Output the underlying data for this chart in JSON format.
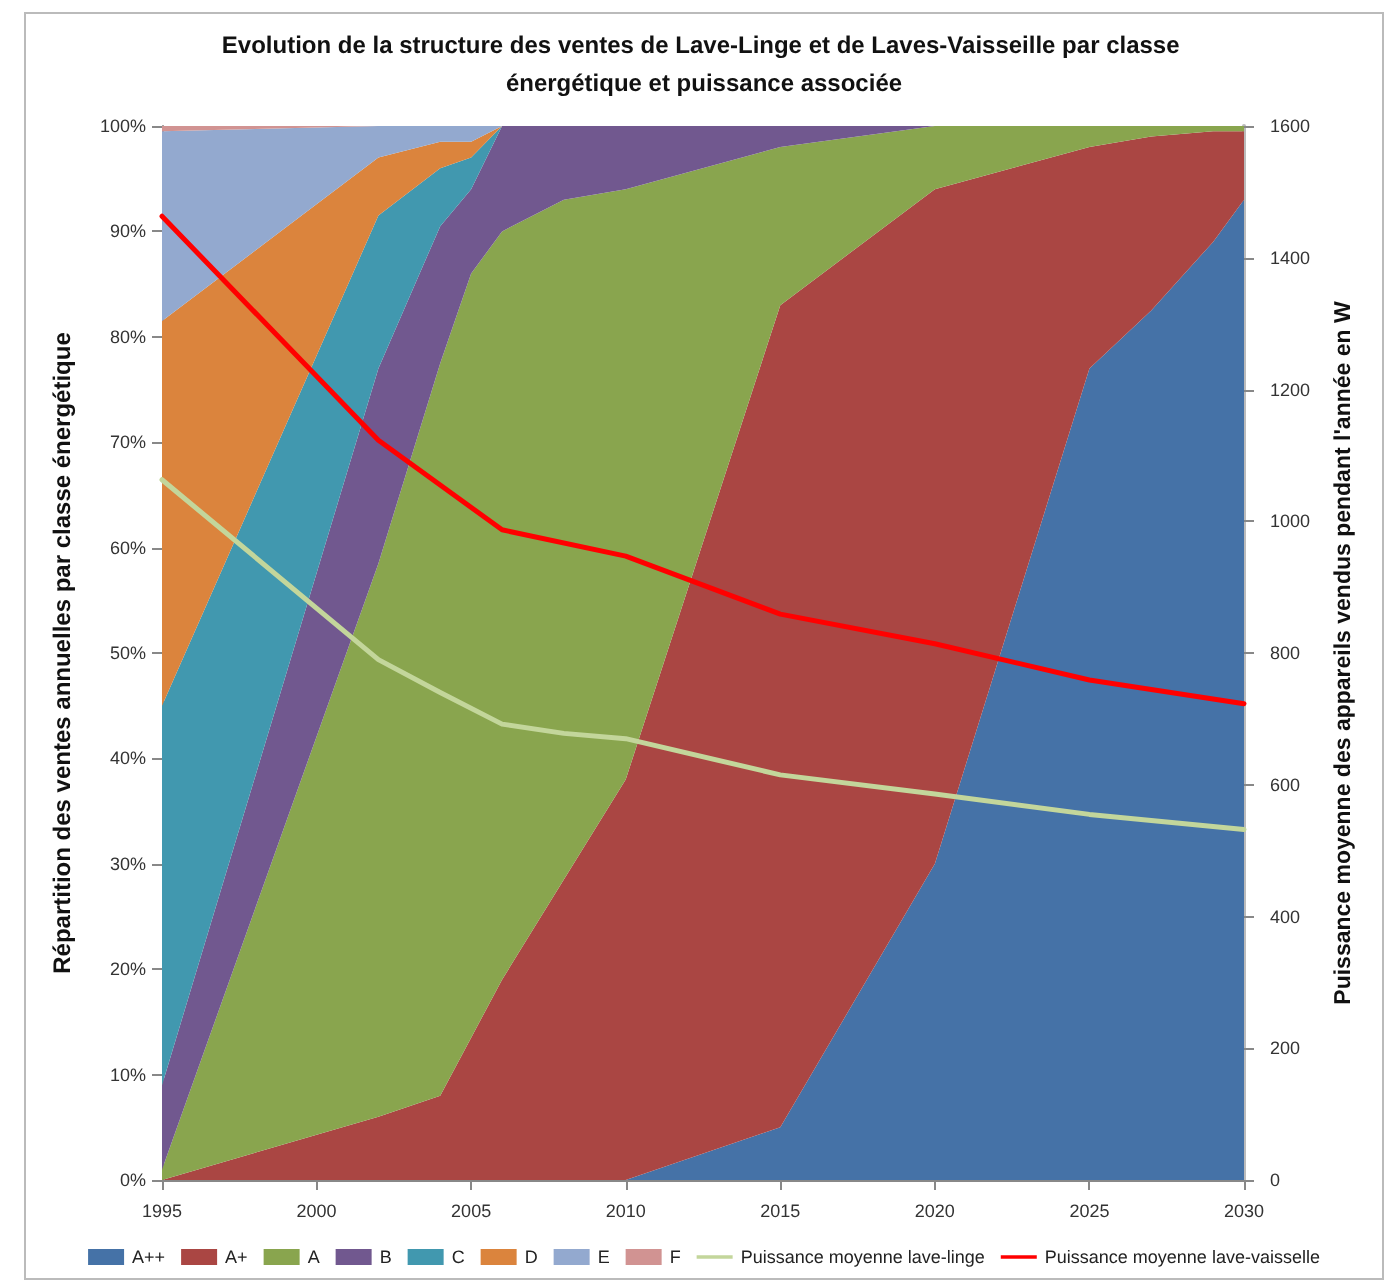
{
  "chart_data": {
    "type": "area",
    "title": "Evolution de la structure des ventes de Lave-Linge et de Laves-Vaisseille par classe énergétique et puissance associée",
    "ylabel": "Répartition des ventes annuelles par classe énergétique",
    "y2label": "Puissance moyenne des appareils vendus pendant l'année en W",
    "x": [
      1995,
      2002,
      2004,
      2005,
      2006,
      2008,
      2010,
      2015,
      2020,
      2025,
      2027,
      2029,
      2030
    ],
    "stacked": true,
    "series": [
      {
        "name": "A++",
        "color": "#4572a7",
        "values": [
          0,
          0,
          0,
          0,
          0,
          0,
          0,
          5,
          30,
          77,
          82.5,
          89,
          93
        ]
      },
      {
        "name": "A+",
        "color": "#aa4643",
        "values": [
          0,
          6,
          8,
          13.5,
          19,
          28.5,
          38,
          78,
          64,
          21,
          16.5,
          10.5,
          6.5
        ]
      },
      {
        "name": "A",
        "color": "#89a54e",
        "values": [
          1,
          52.5,
          69.5,
          72.5,
          71,
          64.5,
          56,
          15,
          6,
          2,
          1,
          0.5,
          0.5
        ]
      },
      {
        "name": "B",
        "color": "#71588f",
        "values": [
          8,
          18.5,
          13,
          8,
          10,
          7,
          6,
          2,
          0,
          0,
          0,
          0,
          0
        ]
      },
      {
        "name": "C",
        "color": "#4198af",
        "values": [
          36,
          14.5,
          5.5,
          3,
          0,
          0,
          0,
          0,
          0,
          0,
          0,
          0,
          0
        ]
      },
      {
        "name": "D",
        "color": "#db843d",
        "values": [
          36.5,
          5.5,
          2.5,
          1.5,
          0,
          0,
          0,
          0,
          0,
          0,
          0,
          0,
          0
        ]
      },
      {
        "name": "E",
        "color": "#93a9cf",
        "values": [
          18,
          3,
          1.5,
          1.5,
          0,
          0,
          0,
          0,
          0,
          0,
          0,
          0,
          0
        ]
      },
      {
        "name": "F",
        "color": "#d19392",
        "values": [
          0.5,
          0,
          0,
          0,
          0,
          0,
          0,
          0,
          0,
          0,
          0,
          0,
          0
        ]
      },
      {
        "name": "Puissance moyenne lave-linge",
        "type": "line",
        "axis": "y2",
        "color": "#c3d69b",
        "x": [
          1995,
          2002,
          2004,
          2006,
          2008,
          2010,
          2015,
          2020,
          2025,
          2030
        ],
        "values": [
          1063,
          790,
          740,
          692,
          678,
          670,
          615,
          586,
          555,
          532
        ]
      },
      {
        "name": "Puissance moyenne lave-vaisselle",
        "type": "line",
        "axis": "y2",
        "color": "#ff0000",
        "x": [
          1995,
          2002,
          2006,
          2010,
          2015,
          2020,
          2025,
          2030
        ],
        "values": [
          1463,
          1123,
          987,
          947,
          859,
          814,
          759,
          723
        ]
      }
    ],
    "xlim": [
      1995,
      2030
    ],
    "xticks": [
      1995,
      2000,
      2005,
      2010,
      2015,
      2020,
      2025,
      2030
    ],
    "ylim": [
      0,
      100
    ],
    "yticks": [
      {
        "value": 0,
        "label": "0%"
      },
      {
        "value": 10,
        "label": "10%"
      },
      {
        "value": 20,
        "label": "20%"
      },
      {
        "value": 30,
        "label": "30%"
      },
      {
        "value": 40,
        "label": "40%"
      },
      {
        "value": 50,
        "label": "50%"
      },
      {
        "value": 60,
        "label": "60%"
      },
      {
        "value": 70,
        "label": "70%"
      },
      {
        "value": 80,
        "label": "80%"
      },
      {
        "value": 90,
        "label": "90%"
      },
      {
        "value": 100,
        "label": "100%"
      }
    ],
    "y2lim": [
      0,
      1600
    ],
    "y2ticks": [
      0,
      200,
      400,
      600,
      800,
      1000,
      1200,
      1400,
      1600
    ],
    "legend": "bottom",
    "marker": "none"
  }
}
